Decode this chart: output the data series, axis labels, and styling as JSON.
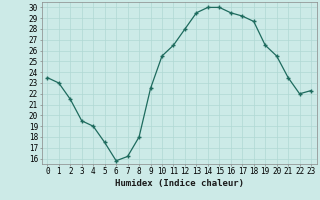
{
  "x": [
    0,
    1,
    2,
    3,
    4,
    5,
    6,
    7,
    8,
    9,
    10,
    11,
    12,
    13,
    14,
    15,
    16,
    17,
    18,
    19,
    20,
    21,
    22,
    23
  ],
  "y": [
    23.5,
    23.0,
    21.5,
    19.5,
    19.0,
    17.5,
    15.8,
    16.2,
    18.0,
    22.5,
    25.5,
    26.5,
    28.0,
    29.5,
    30.0,
    30.0,
    29.5,
    29.2,
    28.7,
    26.5,
    25.5,
    23.5,
    22.0,
    22.3
  ],
  "xlabel": "Humidex (Indice chaleur)",
  "xlim": [
    -0.5,
    23.5
  ],
  "ylim": [
    15.5,
    30.5
  ],
  "yticks": [
    16,
    17,
    18,
    19,
    20,
    21,
    22,
    23,
    24,
    25,
    26,
    27,
    28,
    29,
    30
  ],
  "xticks": [
    0,
    1,
    2,
    3,
    4,
    5,
    6,
    7,
    8,
    9,
    10,
    11,
    12,
    13,
    14,
    15,
    16,
    17,
    18,
    19,
    20,
    21,
    22,
    23
  ],
  "line_color": "#1e6b5e",
  "marker_color": "#1e6b5e",
  "bg_color": "#cceae7",
  "grid_color": "#b0d8d4",
  "label_fontsize": 6.5,
  "tick_fontsize": 5.5
}
